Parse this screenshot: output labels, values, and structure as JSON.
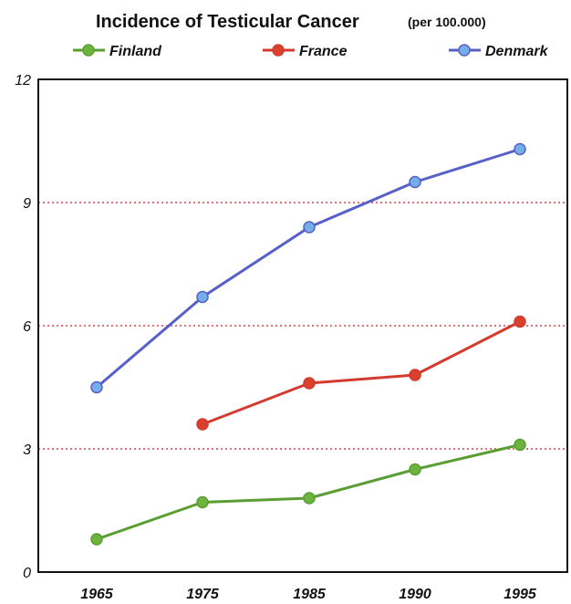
{
  "chart_data": {
    "type": "line",
    "title": "Incidence of Testicular Cancer",
    "subtitle": "(per 100.000)",
    "xlabel": "",
    "ylabel": "",
    "categories": [
      "1965",
      "1975",
      "1985",
      "1990",
      "1995"
    ],
    "ylim": [
      0,
      12
    ],
    "yticks": [
      0,
      3,
      6,
      9,
      12
    ],
    "ytick_labels": [
      "0",
      "3",
      "6",
      "9",
      "12"
    ],
    "grid": "horizontal dotted lines at 3, 6 and 9",
    "legend_position": "top",
    "series": [
      {
        "name": "Finland",
        "color": "#5a9e33",
        "marker_color": "#6cb43e",
        "values": [
          0.8,
          1.7,
          1.8,
          2.5,
          3.1
        ]
      },
      {
        "name": "France",
        "color": "#d43a2e",
        "marker_color": "#d9412f",
        "values": [
          null,
          3.6,
          4.6,
          4.8,
          6.1
        ]
      },
      {
        "name": "Denmark",
        "color": "#5660c8",
        "marker_color": "#74aee8",
        "values": [
          4.5,
          6.7,
          8.4,
          9.5,
          10.3
        ]
      }
    ]
  }
}
